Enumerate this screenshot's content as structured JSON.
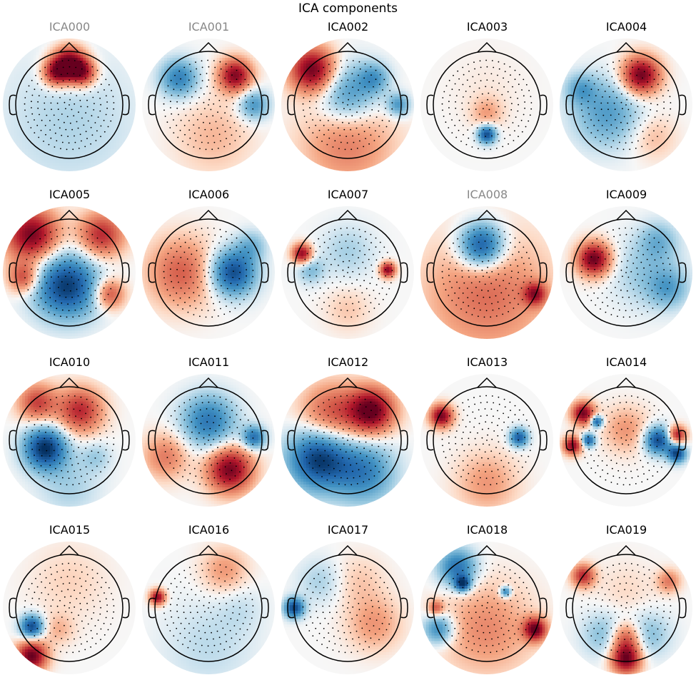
{
  "title": "ICA components",
  "colors": {
    "positive": "#b2182b",
    "negative": "#2166ac",
    "neutral": "#f7f7f7",
    "excluded_title": "#888888",
    "title": "#000000"
  },
  "components": [
    {
      "name": "ICA000",
      "excluded": true,
      "blobs": [
        [
          0.0,
          0.78,
          0.22,
          1.0
        ],
        [
          -0.25,
          0.6,
          0.18,
          0.75
        ],
        [
          0.25,
          0.6,
          0.18,
          0.75
        ],
        [
          0,
          -0.3,
          0.9,
          -0.18
        ]
      ]
    },
    {
      "name": "ICA001",
      "excluded": true,
      "blobs": [
        [
          0.5,
          0.55,
          0.22,
          0.9
        ],
        [
          -0.55,
          0.5,
          0.25,
          -0.6
        ],
        [
          0.85,
          0.0,
          0.2,
          -0.5
        ],
        [
          0.1,
          -0.6,
          0.5,
          0.2
        ]
      ]
    },
    {
      "name": "ICA002",
      "excluded": false,
      "blobs": [
        [
          -0.65,
          0.65,
          0.3,
          1.0
        ],
        [
          0.0,
          0.2,
          0.4,
          -0.55
        ],
        [
          0.5,
          0.5,
          0.2,
          -0.4
        ],
        [
          0.95,
          0.0,
          0.15,
          -0.5
        ],
        [
          0,
          -0.7,
          0.6,
          0.4
        ]
      ]
    },
    {
      "name": "ICA003",
      "excluded": false,
      "blobs": [
        [
          0.0,
          -0.55,
          0.12,
          -0.9
        ],
        [
          0.0,
          -0.15,
          0.2,
          0.25
        ],
        [
          0.0,
          0.3,
          0.5,
          0.05
        ]
      ]
    },
    {
      "name": "ICA004",
      "excluded": false,
      "blobs": [
        [
          0.28,
          0.55,
          0.25,
          1.0
        ],
        [
          -0.35,
          -0.15,
          0.45,
          -0.45
        ],
        [
          -0.85,
          0.3,
          0.2,
          -0.35
        ],
        [
          0.5,
          -0.6,
          0.3,
          0.2
        ]
      ]
    },
    {
      "name": "ICA005",
      "excluded": false,
      "blobs": [
        [
          -0.05,
          -0.25,
          0.42,
          -0.95
        ],
        [
          -0.7,
          0.7,
          0.35,
          0.95
        ],
        [
          0.6,
          0.7,
          0.3,
          0.7
        ],
        [
          0.75,
          -0.4,
          0.2,
          0.6
        ],
        [
          -0.85,
          -0.1,
          0.2,
          0.6
        ]
      ]
    },
    {
      "name": "ICA006",
      "excluded": false,
      "blobs": [
        [
          0.45,
          0.0,
          0.3,
          -0.9
        ],
        [
          -0.5,
          0.0,
          0.45,
          0.5
        ],
        [
          0.8,
          0.5,
          0.2,
          -0.3
        ]
      ]
    },
    {
      "name": "ICA007",
      "excluded": false,
      "blobs": [
        [
          -0.85,
          0.35,
          0.13,
          0.9
        ],
        [
          0.75,
          0.05,
          0.1,
          0.9
        ],
        [
          0.0,
          0.4,
          0.35,
          -0.2
        ],
        [
          -0.7,
          0.05,
          0.18,
          -0.3
        ],
        [
          0.0,
          -0.7,
          0.3,
          0.15
        ]
      ]
    },
    {
      "name": "ICA008",
      "excluded": true,
      "blobs": [
        [
          -0.1,
          0.5,
          0.3,
          -0.95
        ],
        [
          0.0,
          -0.4,
          0.8,
          0.45
        ],
        [
          0.9,
          -0.4,
          0.15,
          0.7
        ]
      ]
    },
    {
      "name": "ICA009",
      "excluded": false,
      "blobs": [
        [
          -0.6,
          0.25,
          0.22,
          1.0
        ],
        [
          0.4,
          0.0,
          0.45,
          -0.25
        ],
        [
          0.8,
          -0.3,
          0.25,
          -0.35
        ],
        [
          0.6,
          0.6,
          0.25,
          -0.3
        ]
      ]
    },
    {
      "name": "ICA010",
      "excluded": false,
      "blobs": [
        [
          -0.45,
          -0.15,
          0.28,
          -1.0
        ],
        [
          0.2,
          0.55,
          0.3,
          0.7
        ],
        [
          -0.6,
          0.7,
          0.25,
          0.6
        ],
        [
          0.5,
          -0.3,
          0.2,
          -0.2
        ],
        [
          0,
          -0.85,
          0.4,
          -0.2
        ]
      ]
    },
    {
      "name": "ICA011",
      "excluded": false,
      "blobs": [
        [
          0.0,
          0.35,
          0.35,
          -0.65
        ],
        [
          0.4,
          -0.55,
          0.3,
          0.95
        ],
        [
          0.85,
          0.05,
          0.15,
          -0.7
        ],
        [
          -0.8,
          -0.3,
          0.3,
          0.4
        ]
      ]
    },
    {
      "name": "ICA012",
      "excluded": false,
      "blobs": [
        [
          -0.55,
          -0.35,
          0.4,
          -0.95
        ],
        [
          0.3,
          -0.6,
          0.4,
          -0.6
        ],
        [
          0.45,
          0.55,
          0.3,
          1.0
        ],
        [
          -0.3,
          0.5,
          0.4,
          0.55
        ]
      ]
    },
    {
      "name": "ICA013",
      "excluded": false,
      "blobs": [
        [
          -0.85,
          0.45,
          0.15,
          0.95
        ],
        [
          0.6,
          0.05,
          0.12,
          -0.8
        ],
        [
          0.0,
          -0.8,
          0.4,
          0.3
        ]
      ]
    },
    {
      "name": "ICA014",
      "excluded": false,
      "blobs": [
        [
          -0.8,
          0.5,
          0.15,
          0.95
        ],
        [
          -0.55,
          0.35,
          0.08,
          -0.9
        ],
        [
          -0.7,
          0.0,
          0.09,
          -0.8
        ],
        [
          0.6,
          0.0,
          0.18,
          -0.9
        ],
        [
          0.95,
          -0.25,
          0.12,
          -0.9
        ],
        [
          -1.0,
          -0.1,
          0.12,
          0.9
        ],
        [
          0.95,
          0.1,
          0.12,
          0.8
        ],
        [
          0.0,
          0.2,
          0.3,
          0.3
        ]
      ]
    },
    {
      "name": "ICA015",
      "excluded": false,
      "blobs": [
        [
          -0.7,
          -0.9,
          0.2,
          1.0
        ],
        [
          -0.7,
          -0.35,
          0.15,
          -0.9
        ],
        [
          -0.2,
          -0.4,
          0.2,
          0.2
        ],
        [
          0.0,
          0.5,
          0.5,
          0.12
        ]
      ]
    },
    {
      "name": "ICA016",
      "excluded": false,
      "blobs": [
        [
          -0.95,
          0.2,
          0.1,
          0.9
        ],
        [
          0.3,
          0.7,
          0.3,
          0.3
        ],
        [
          0,
          -0.7,
          0.6,
          -0.15
        ],
        [
          0.6,
          0.0,
          0.3,
          -0.1
        ]
      ]
    },
    {
      "name": "ICA017",
      "excluded": false,
      "blobs": [
        [
          -1.0,
          0.0,
          0.13,
          -0.9
        ],
        [
          0.5,
          -0.3,
          0.35,
          0.3
        ],
        [
          0.2,
          0.5,
          0.35,
          0.15
        ],
        [
          -0.5,
          0.5,
          0.3,
          -0.2
        ]
      ]
    },
    {
      "name": "ICA018",
      "excluded": false,
      "blobs": [
        [
          -0.45,
          0.45,
          0.1,
          -0.9
        ],
        [
          0.35,
          0.3,
          0.07,
          -0.7
        ],
        [
          -0.55,
          0.75,
          0.25,
          -0.7
        ],
        [
          0.9,
          -0.4,
          0.15,
          0.95
        ],
        [
          -0.9,
          -0.4,
          0.2,
          -0.6
        ],
        [
          0.0,
          -0.4,
          0.6,
          0.35
        ],
        [
          -0.95,
          0.0,
          0.1,
          0.5
        ]
      ]
    },
    {
      "name": "ICA019",
      "excluded": false,
      "blobs": [
        [
          0.0,
          -0.95,
          0.2,
          1.0
        ],
        [
          0.0,
          -0.55,
          0.2,
          0.6
        ],
        [
          -0.8,
          0.6,
          0.15,
          0.7
        ],
        [
          0.8,
          0.5,
          0.15,
          0.4
        ],
        [
          0.0,
          0.3,
          0.4,
          0.1
        ],
        [
          -0.4,
          -0.5,
          0.3,
          -0.3
        ],
        [
          0.4,
          -0.5,
          0.3,
          -0.3
        ]
      ]
    }
  ]
}
